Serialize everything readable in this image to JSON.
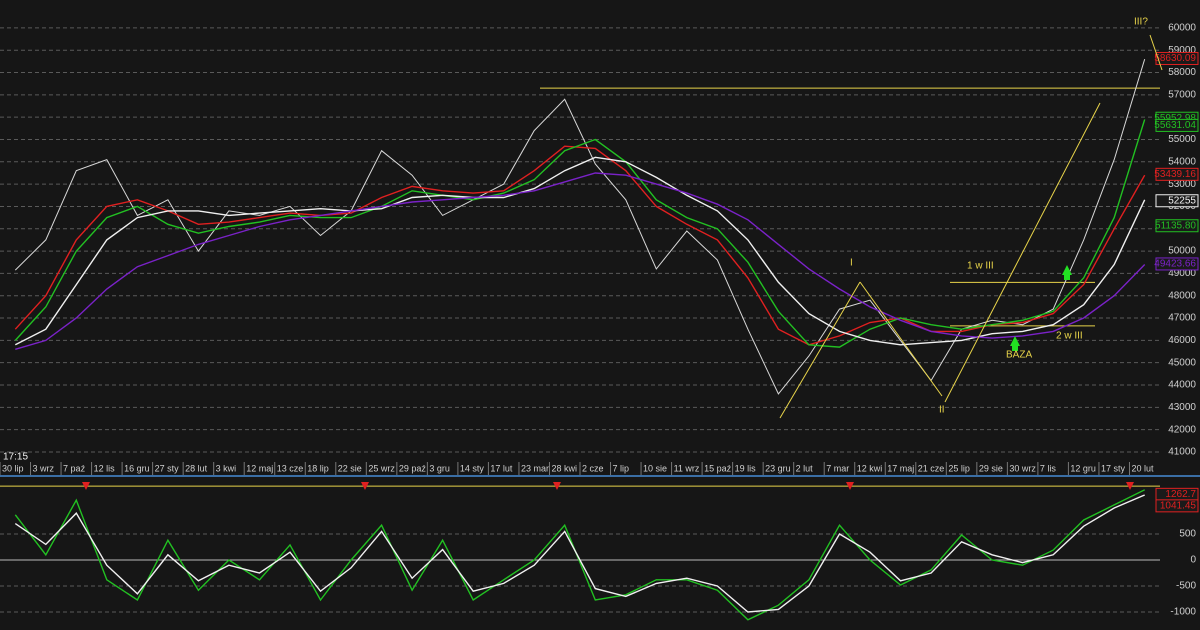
{
  "chart_data": [
    {
      "type": "line",
      "categories": [
        "30 lip",
        "3 wrz",
        "7 paź",
        "12 lis",
        "16 gru",
        "27 sty",
        "28 lut",
        "3 kwi",
        "12 maj",
        "13 cze",
        "18 lip",
        "22 sie",
        "25 wrz",
        "29 paź",
        "3 gru",
        "14 sty",
        "17 lut",
        "23 mar",
        "28 kwi",
        "2 cze",
        "7 lip",
        "10 sie",
        "11 wrz",
        "15 paź",
        "19 lis",
        "23 gru",
        "2 lut",
        "7 mar",
        "12 kwi",
        "17 maj",
        "21 cze",
        "25 lip",
        "29 sie",
        "30 wrz",
        "7 lis",
        "12 gru",
        "17 sty",
        "20 lut"
      ],
      "series": [
        {
          "color": "#d8d8d8",
          "values": [
            49150,
            50500,
            53600,
            54100,
            51600,
            52300,
            50000,
            51800,
            51600,
            52000,
            50700,
            51800,
            54500,
            53400,
            51600,
            52300,
            53000,
            55400,
            56800,
            53900,
            52300,
            49200,
            50900,
            49600,
            46500,
            43600,
            45300,
            47400,
            47800,
            46000,
            44200,
            46500,
            46900,
            46700,
            47400,
            50500,
            54100,
            58600
          ]
        },
        {
          "color": "#e02020",
          "values": [
            46500,
            48000,
            50500,
            52000,
            52300,
            51800,
            51200,
            51300,
            51500,
            51700,
            51600,
            51700,
            52400,
            52900,
            52700,
            52600,
            52700,
            53600,
            54700,
            54600,
            53600,
            52000,
            51200,
            50500,
            48800,
            46500,
            45800,
            46200,
            46800,
            47000,
            46400,
            46400,
            46700,
            46800,
            47200,
            48500,
            51000,
            53400
          ]
        },
        {
          "color": "#22c022",
          "values": [
            46000,
            47500,
            50000,
            51500,
            52000,
            51200,
            50800,
            51100,
            51300,
            51600,
            51500,
            51500,
            52000,
            52700,
            52500,
            52300,
            52600,
            53200,
            54500,
            55000,
            54000,
            52300,
            51500,
            51000,
            49500,
            47300,
            45800,
            45700,
            46500,
            47000,
            46700,
            46500,
            46700,
            46900,
            47300,
            48800,
            51500,
            55900
          ]
        },
        {
          "color": "#f0f0f0",
          "values": [
            45800,
            46500,
            48500,
            50500,
            51500,
            51800,
            51800,
            51600,
            51700,
            51800,
            51900,
            51800,
            51900,
            52400,
            52500,
            52400,
            52400,
            52800,
            53600,
            54200,
            54000,
            53300,
            52500,
            51800,
            50500,
            48600,
            47200,
            46400,
            46000,
            45800,
            45900,
            46000,
            46300,
            46400,
            46700,
            47600,
            49400,
            52300
          ]
        },
        {
          "color": "#7a22c8",
          "values": [
            45600,
            46000,
            47000,
            48300,
            49300,
            49800,
            50300,
            50700,
            51100,
            51400,
            51600,
            51800,
            52000,
            52200,
            52300,
            52400,
            52500,
            52700,
            53100,
            53500,
            53400,
            53000,
            52600,
            52100,
            51400,
            50300,
            49200,
            48300,
            47500,
            46900,
            46400,
            46200,
            46100,
            46200,
            46400,
            47000,
            48000,
            49400
          ]
        }
      ],
      "ylim": [
        40550,
        61250
      ],
      "yticks": [
        41000,
        42000,
        43000,
        44000,
        45000,
        46000,
        47000,
        48000,
        49000,
        50000,
        51000,
        52000,
        53000,
        54000,
        55000,
        56000,
        57000,
        58000,
        59000,
        60000
      ],
      "grid": true,
      "hlines": [
        57300,
        48600,
        46650
      ],
      "last_labels": [
        {
          "value": 58630.09,
          "label": "58630.09",
          "color": "#e02020"
        },
        {
          "value": 55952.98,
          "label": "55952.98",
          "color": "#22c022"
        },
        {
          "value": 55631.04,
          "label": "55631.04",
          "color": "#22c022"
        },
        {
          "value": 53439.16,
          "label": "53439.16",
          "color": "#e02020"
        },
        {
          "value": 52255,
          "label": "52255",
          "color": "#f0f0f0"
        },
        {
          "value": 51135.8,
          "label": "51135.80",
          "color": "#22c022"
        },
        {
          "value": 49423.66,
          "label": "49423.66",
          "color": "#7a22c8"
        }
      ],
      "annotations": [
        "III?",
        "I",
        "II",
        "1 w III",
        "2 w III",
        "BAZA",
        "17:15"
      ]
    },
    {
      "type": "line",
      "series": [
        {
          "color": "#22c022",
          "values": [
            870,
            100,
            1150,
            -380,
            -770,
            380,
            -580,
            0,
            -380,
            290,
            -770,
            0,
            670,
            -580,
            380,
            -770,
            -380,
            0,
            670,
            -770,
            -670,
            -380,
            -380,
            -580,
            -1150,
            -870,
            -380,
            670,
            0,
            -480,
            -190,
            480,
            0,
            -100,
            190,
            770,
            1060,
            1350
          ]
        },
        {
          "color": "#f0f0f0",
          "values": [
            700,
            300,
            900,
            -100,
            -650,
            100,
            -400,
            -100,
            -250,
            150,
            -600,
            -150,
            550,
            -350,
            200,
            -600,
            -450,
            -100,
            550,
            -550,
            -700,
            -450,
            -350,
            -500,
            -1000,
            -950,
            -500,
            500,
            150,
            -400,
            -250,
            350,
            100,
            -50,
            100,
            650,
            1000,
            1250
          ]
        }
      ],
      "ylim": [
        -1346,
        1577
      ],
      "yticks": [
        -1000,
        -500,
        0,
        500
      ],
      "grid": true,
      "hlines": [
        1420
      ],
      "last_labels": [
        {
          "value": 1262.7,
          "label": "1262.7",
          "color": "#e02020"
        },
        {
          "value": 1041.45,
          "label": "1041.45",
          "color": "#e02020"
        }
      ]
    }
  ]
}
